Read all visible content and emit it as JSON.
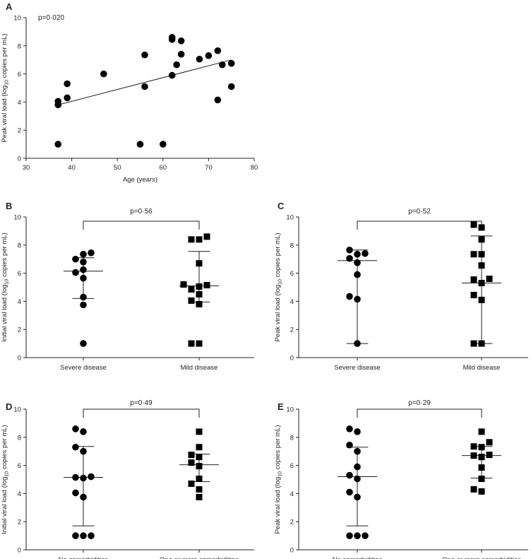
{
  "chart_data": [
    {
      "panel": "A",
      "type": "scatter",
      "annotation": "p=0·020",
      "xlabel": "Age (years)",
      "ylabel": "Peak viral load (log10 copies per mL)",
      "xlim": [
        30,
        80
      ],
      "ylim": [
        0,
        10
      ],
      "xticks": [
        30,
        40,
        50,
        60,
        70,
        80
      ],
      "yticks": [
        0,
        2,
        4,
        6,
        8,
        10
      ],
      "points": [
        [
          37,
          1.0
        ],
        [
          37,
          3.8
        ],
        [
          37,
          4.05
        ],
        [
          39,
          4.3
        ],
        [
          39,
          5.3
        ],
        [
          47,
          6.0
        ],
        [
          55,
          1.0
        ],
        [
          56,
          5.1
        ],
        [
          56,
          7.35
        ],
        [
          60,
          1.0
        ],
        [
          62,
          5.9
        ],
        [
          62,
          8.45
        ],
        [
          62,
          8.6
        ],
        [
          63,
          6.65
        ],
        [
          64,
          8.35
        ],
        [
          64,
          7.4
        ],
        [
          68,
          7.05
        ],
        [
          70,
          7.3
        ],
        [
          72,
          4.15
        ],
        [
          72,
          7.65
        ],
        [
          73,
          6.65
        ],
        [
          75,
          6.75
        ],
        [
          75,
          5.1
        ]
      ],
      "trendline": {
        "x": [
          37,
          75
        ],
        "y": [
          3.8,
          7.0
        ]
      }
    },
    {
      "panel": "B",
      "type": "scatter",
      "annotation": "p=0·56",
      "ylabel": "Initial viral load (log10 copies per mL)",
      "ylim": [
        0,
        10
      ],
      "yticks": [
        0,
        2,
        4,
        6,
        8,
        10
      ],
      "categories": [
        "Severe disease",
        "Mild disease"
      ],
      "series": [
        {
          "marker": "circle",
          "values": [
            1.0,
            3.75,
            4.3,
            5.65,
            6.05,
            6.25,
            6.8,
            7.0,
            7.35,
            7.45
          ],
          "median": 6.15,
          "lower": 4.2,
          "upper": 7.1
        },
        {
          "marker": "square",
          "values": [
            1.0,
            1.0,
            3.8,
            4.05,
            4.5,
            4.85,
            5.05,
            5.15,
            5.2,
            6.7,
            8.4,
            8.4,
            8.6
          ],
          "median": 5.1,
          "lower": 3.95,
          "upper": 7.55
        }
      ]
    },
    {
      "panel": "C",
      "type": "scatter",
      "annotation": "p=0·52",
      "ylabel": "Peak viral load (log10 copies per mL)",
      "ylim": [
        0,
        10
      ],
      "yticks": [
        0,
        2,
        4,
        6,
        8,
        10
      ],
      "categories": [
        "Severe disease",
        "Mild disease"
      ],
      "series": [
        {
          "marker": "circle",
          "values": [
            1.0,
            4.15,
            4.35,
            5.9,
            6.75,
            7.05,
            7.35,
            7.4,
            7.65
          ],
          "median": 6.9,
          "lower": 1.0,
          "upper": 7.65
        },
        {
          "marker": "square",
          "values": [
            1.0,
            1.0,
            4.1,
            4.45,
            5.3,
            5.55,
            5.6,
            6.55,
            7.35,
            7.35,
            8.4,
            9.25,
            9.45
          ],
          "median": 5.3,
          "lower": 1.0,
          "upper": 8.65
        }
      ]
    },
    {
      "panel": "D",
      "type": "scatter",
      "annotation": "p=0·49",
      "ylabel": "Initial viral load (log10 copies per mL)",
      "ylim": [
        0,
        10
      ],
      "yticks": [
        0,
        2,
        4,
        6,
        8,
        10
      ],
      "categories": [
        "No comorbidities",
        "One or more comorbidities"
      ],
      "series": [
        {
          "marker": "circle",
          "values": [
            1.0,
            1.0,
            1.0,
            3.75,
            4.05,
            5.1,
            5.15,
            5.2,
            7.0,
            7.3,
            8.4,
            8.6
          ],
          "median": 5.15,
          "lower": 1.7,
          "upper": 7.35
        },
        {
          "marker": "square",
          "values": [
            3.75,
            4.3,
            4.7,
            5.05,
            5.95,
            6.2,
            6.6,
            6.75,
            7.3,
            8.4
          ],
          "median": 6.05,
          "lower": 4.85,
          "upper": 6.8
        }
      ]
    },
    {
      "panel": "E",
      "type": "scatter",
      "annotation": "p=0·29",
      "ylabel": "Peak viral load (log10 copies per mL)",
      "ylim": [
        0,
        10
      ],
      "yticks": [
        0,
        2,
        4,
        6,
        8,
        10
      ],
      "categories": [
        "No comorbidities",
        "One or more comorbidities"
      ],
      "series": [
        {
          "marker": "circle",
          "values": [
            1.0,
            1.0,
            1.0,
            3.75,
            4.1,
            5.05,
            5.3,
            5.9,
            7.0,
            7.45,
            8.4,
            8.6
          ],
          "median": 5.2,
          "lower": 1.7,
          "upper": 7.3
        },
        {
          "marker": "square",
          "values": [
            4.15,
            4.3,
            5.05,
            5.85,
            6.6,
            6.7,
            6.75,
            7.3,
            7.35,
            7.65,
            8.4
          ],
          "median": 6.7,
          "lower": 5.1,
          "upper": 7.35
        }
      ]
    }
  ]
}
